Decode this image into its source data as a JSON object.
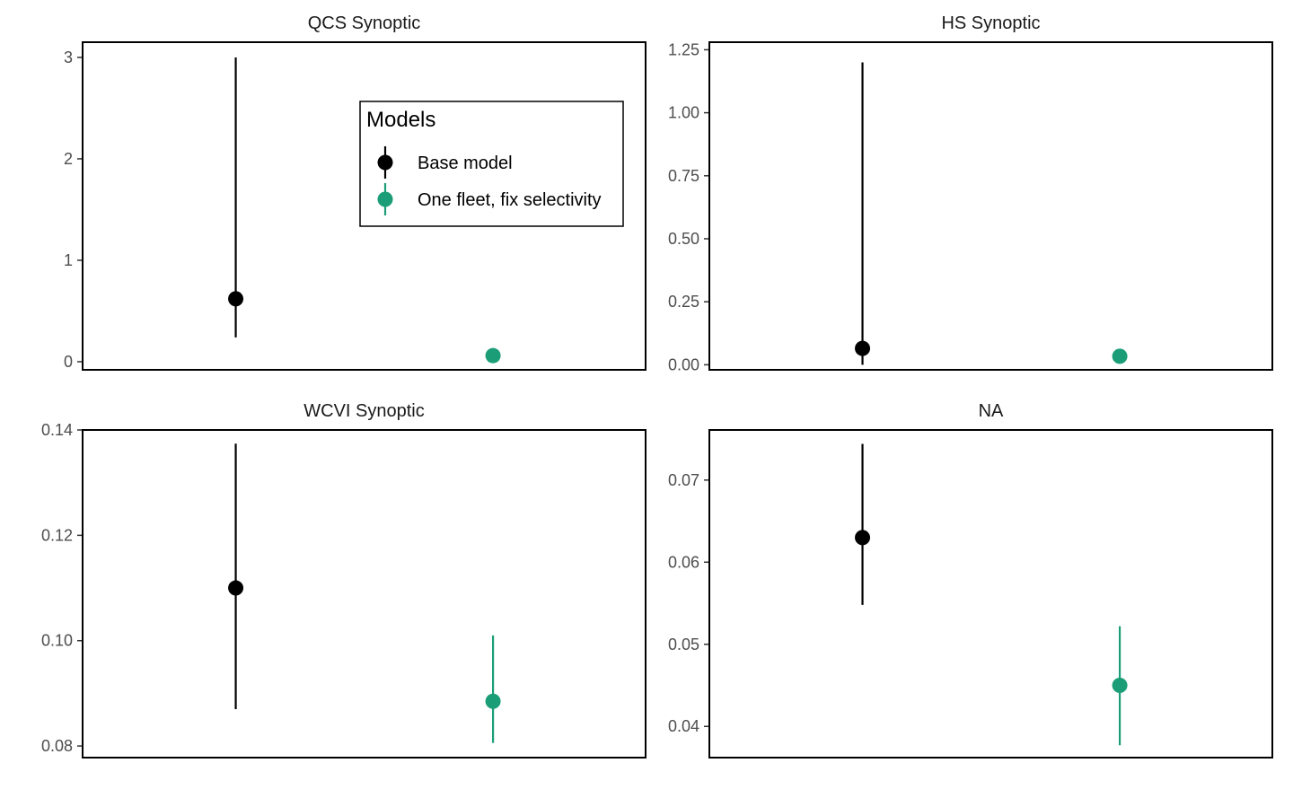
{
  "chart_data": {
    "type": "scatter",
    "legend": {
      "title": "Models",
      "placement": "inside-top-right-of-first-panel",
      "entries": [
        {
          "name": "Base model",
          "color": "#000000"
        },
        {
          "name": "One fleet, fix selectivity",
          "color": "#1b9e77"
        }
      ]
    },
    "panels": [
      {
        "title": "QCS Synoptic",
        "ylim": [
          -0.08,
          3.15
        ],
        "yticks": [
          0,
          1,
          2,
          3
        ],
        "tick_labels": [
          "0",
          "1",
          "2",
          "3"
        ],
        "points": [
          {
            "series": "Base model",
            "value": 0.62,
            "lower": 0.24,
            "upper": 3.0
          },
          {
            "series": "One fleet, fix selectivity",
            "value": 0.06,
            "lower": 0.04,
            "upper": 0.08
          }
        ]
      },
      {
        "title": "HS Synoptic",
        "ylim": [
          -0.02,
          1.28
        ],
        "yticks": [
          0,
          0.25,
          0.5,
          0.75,
          1.0,
          1.25
        ],
        "tick_labels": [
          "0.00",
          "0.25",
          "0.50",
          "0.75",
          "1.00",
          "1.25"
        ],
        "points": [
          {
            "series": "Base model",
            "value": 0.065,
            "lower": 0.0,
            "upper": 1.2
          },
          {
            "series": "One fleet, fix selectivity",
            "value": 0.034,
            "lower": 0.028,
            "upper": 0.04
          }
        ]
      },
      {
        "title": "WCVI Synoptic",
        "ylim": [
          0.0778,
          0.14
        ],
        "yticks": [
          0.08,
          0.1,
          0.12,
          0.14
        ],
        "tick_labels": [
          "0.08",
          "0.10",
          "0.12",
          "0.14"
        ],
        "points": [
          {
            "series": "Base model",
            "value": 0.11,
            "lower": 0.087,
            "upper": 0.1374
          },
          {
            "series": "One fleet, fix selectivity",
            "value": 0.0885,
            "lower": 0.0806,
            "upper": 0.101
          }
        ]
      },
      {
        "title": "NA",
        "ylim": [
          0.0362,
          0.0761
        ],
        "yticks": [
          0.04,
          0.05,
          0.06,
          0.07
        ],
        "tick_labels": [
          "0.04",
          "0.05",
          "0.06",
          "0.07"
        ],
        "points": [
          {
            "series": "Base model",
            "value": 0.063,
            "lower": 0.0548,
            "upper": 0.0744
          },
          {
            "series": "One fleet, fix selectivity",
            "value": 0.045,
            "lower": 0.0377,
            "upper": 0.0522
          }
        ]
      }
    ]
  }
}
